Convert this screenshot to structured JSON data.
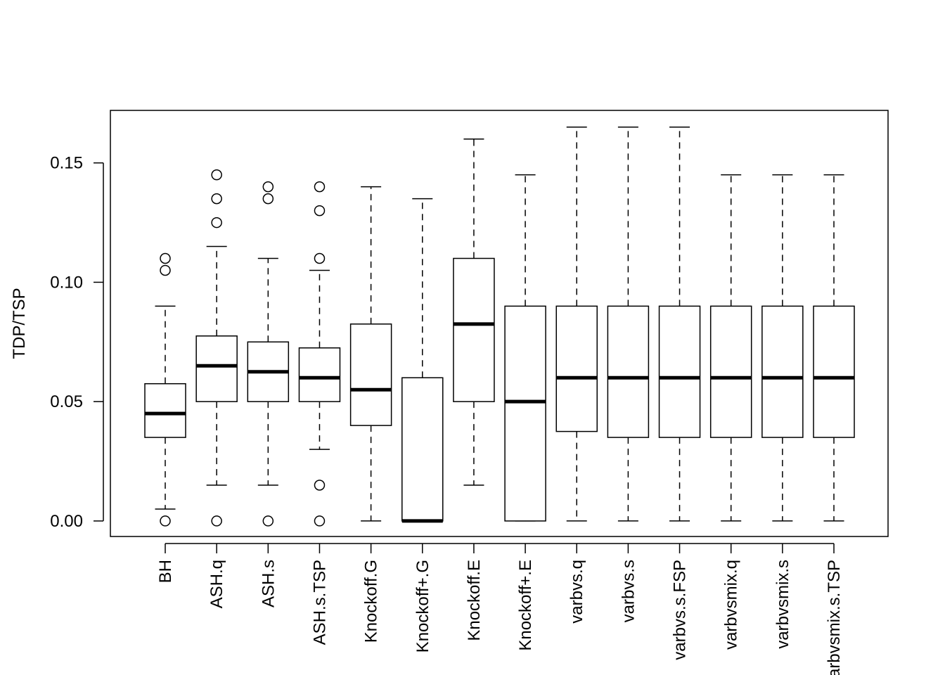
{
  "chart_data": {
    "type": "boxplot",
    "title": "",
    "xlabel": "",
    "ylabel": "TDP/TSP",
    "ylim": [
      -0.0065,
      0.172
    ],
    "yticks": [
      0.0,
      0.05,
      0.1,
      0.15
    ],
    "ytick_labels": [
      "0.00",
      "0.05",
      "0.10",
      "0.15"
    ],
    "grid": false,
    "categories": [
      "BH",
      "ASH.q",
      "ASH.s",
      "ASH.s.TSP",
      "Knockoff.G",
      "Knockoff+.G",
      "Knockoff.E",
      "Knockoff+.E",
      "varbvs.q",
      "varbvs.s",
      "varbvs.s.FSP",
      "varbvsmix.q",
      "varbvsmix.s",
      "varbvsmix.s.TSP"
    ],
    "boxes": [
      {
        "whisker_low": 0.005,
        "q1": 0.035,
        "median": 0.045,
        "q3": 0.0575,
        "whisker_high": 0.09,
        "outliers": [
          0,
          0.105,
          0.11
        ]
      },
      {
        "whisker_low": 0.015,
        "q1": 0.05,
        "median": 0.065,
        "q3": 0.0775,
        "whisker_high": 0.115,
        "outliers": [
          0,
          0.125,
          0.135,
          0.145
        ]
      },
      {
        "whisker_low": 0.015,
        "q1": 0.05,
        "median": 0.0625,
        "q3": 0.075,
        "whisker_high": 0.11,
        "outliers": [
          0,
          0.135,
          0.14
        ]
      },
      {
        "whisker_low": 0.03,
        "q1": 0.05,
        "median": 0.06,
        "q3": 0.0725,
        "whisker_high": 0.105,
        "outliers": [
          0,
          0.015,
          0.11,
          0.13,
          0.14
        ]
      },
      {
        "whisker_low": 0,
        "q1": 0.04,
        "median": 0.055,
        "q3": 0.0825,
        "whisker_high": 0.14,
        "outliers": []
      },
      {
        "whisker_low": 0,
        "q1": 0,
        "median": 0,
        "q3": 0.06,
        "whisker_high": 0.135,
        "outliers": []
      },
      {
        "whisker_low": 0.015,
        "q1": 0.05,
        "median": 0.0825,
        "q3": 0.11,
        "whisker_high": 0.16,
        "outliers": []
      },
      {
        "whisker_low": 0,
        "q1": 0,
        "median": 0.05,
        "q3": 0.09,
        "whisker_high": 0.145,
        "outliers": []
      },
      {
        "whisker_low": 0,
        "q1": 0.0375,
        "median": 0.06,
        "q3": 0.09,
        "whisker_high": 0.165,
        "outliers": []
      },
      {
        "whisker_low": 0,
        "q1": 0.035,
        "median": 0.06,
        "q3": 0.09,
        "whisker_high": 0.165,
        "outliers": []
      },
      {
        "whisker_low": 0,
        "q1": 0.035,
        "median": 0.06,
        "q3": 0.09,
        "whisker_high": 0.165,
        "outliers": []
      },
      {
        "whisker_low": 0,
        "q1": 0.035,
        "median": 0.06,
        "q3": 0.09,
        "whisker_high": 0.145,
        "outliers": []
      },
      {
        "whisker_low": 0,
        "q1": 0.035,
        "median": 0.06,
        "q3": 0.09,
        "whisker_high": 0.145,
        "outliers": []
      },
      {
        "whisker_low": 0,
        "q1": 0.035,
        "median": 0.06,
        "q3": 0.09,
        "whisker_high": 0.145,
        "outliers": []
      }
    ]
  }
}
